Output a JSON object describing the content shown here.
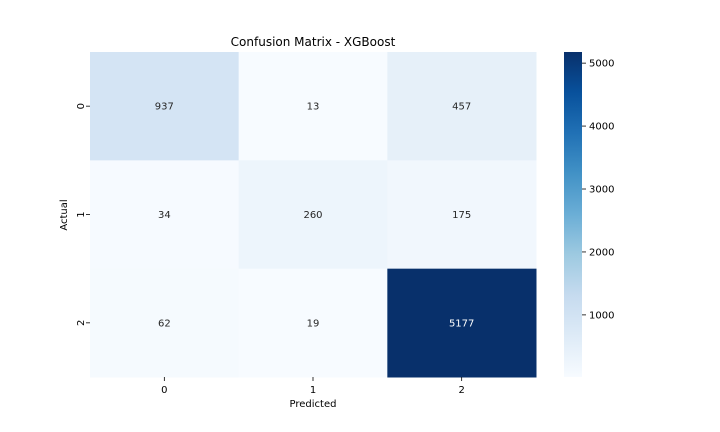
{
  "chart_data": {
    "type": "heatmap",
    "title": "Confusion Matrix - XGBoost",
    "xlabel": "Predicted",
    "ylabel": "Actual",
    "x_categories": [
      "0",
      "1",
      "2"
    ],
    "y_categories": [
      "0",
      "1",
      "2"
    ],
    "values": [
      [
        937,
        13,
        457
      ],
      [
        34,
        260,
        175
      ],
      [
        62,
        19,
        5177
      ]
    ],
    "colorbar": {
      "colormap": "Blues",
      "vmin": 13,
      "vmax": 5177,
      "ticks": [
        1000,
        2000,
        3000,
        4000,
        5000
      ]
    },
    "grid": false,
    "legend": "colorbar-right"
  }
}
